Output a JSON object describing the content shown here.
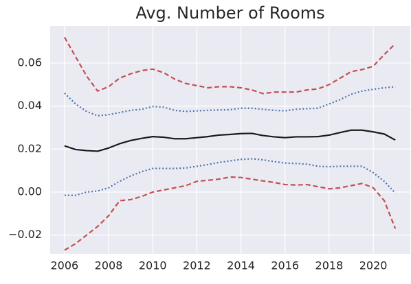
{
  "chart_data": {
    "type": "line",
    "title": "Avg. Number of Rooms",
    "x": [
      2006,
      2006.5,
      2007,
      2007.5,
      2008,
      2008.5,
      2009,
      2009.5,
      2010,
      2010.5,
      2011,
      2011.5,
      2012,
      2012.5,
      2013,
      2013.5,
      2014,
      2014.5,
      2015,
      2015.5,
      2016,
      2016.5,
      2017,
      2017.5,
      2018,
      2018.5,
      2019,
      2019.5,
      2020,
      2020.5,
      2021
    ],
    "series": [
      {
        "color": "#c44e52",
        "dash": "dashed",
        "values": [
          0.072,
          0.063,
          0.054,
          0.047,
          0.049,
          0.053,
          0.055,
          0.0565,
          0.0572,
          0.0555,
          0.0525,
          0.0505,
          0.0495,
          0.0485,
          0.049,
          0.049,
          0.0485,
          0.0475,
          0.0458,
          0.0465,
          0.0465,
          0.0465,
          0.0475,
          0.048,
          0.05,
          0.053,
          0.056,
          0.057,
          0.0585,
          0.064,
          0.069
        ]
      },
      {
        "color": "#4c72b0",
        "dash": "dotted",
        "values": [
          0.046,
          0.041,
          0.0375,
          0.0355,
          0.036,
          0.037,
          0.038,
          0.0385,
          0.0398,
          0.0395,
          0.038,
          0.0375,
          0.0378,
          0.038,
          0.0382,
          0.0383,
          0.039,
          0.039,
          0.0385,
          0.038,
          0.0378,
          0.0385,
          0.0388,
          0.039,
          0.041,
          0.043,
          0.0455,
          0.047,
          0.0478,
          0.0485,
          0.049
        ]
      },
      {
        "color": "#1a1a1a",
        "dash": "solid",
        "values": [
          0.0215,
          0.0198,
          0.0193,
          0.019,
          0.0205,
          0.0225,
          0.024,
          0.025,
          0.0258,
          0.0255,
          0.0248,
          0.0248,
          0.0253,
          0.0258,
          0.0265,
          0.0268,
          0.0272,
          0.0273,
          0.0263,
          0.0257,
          0.0253,
          0.0257,
          0.0257,
          0.0258,
          0.0265,
          0.0277,
          0.0288,
          0.0288,
          0.028,
          0.027,
          0.0242
        ]
      },
      {
        "color": "#4c72b0",
        "dash": "dotted",
        "values": [
          -0.0015,
          -0.0015,
          0.0,
          0.0005,
          0.002,
          0.005,
          0.0075,
          0.0095,
          0.011,
          0.011,
          0.011,
          0.0112,
          0.012,
          0.0128,
          0.0138,
          0.0145,
          0.0152,
          0.0155,
          0.015,
          0.0142,
          0.0135,
          0.0133,
          0.013,
          0.012,
          0.0118,
          0.012,
          0.012,
          0.012,
          0.009,
          0.005,
          -0.0005
        ]
      },
      {
        "color": "#c44e52",
        "dash": "dashed",
        "values": [
          -0.027,
          -0.024,
          -0.02,
          -0.016,
          -0.011,
          -0.004,
          -0.0035,
          -0.002,
          0.0,
          0.001,
          0.002,
          0.003,
          0.005,
          0.0055,
          0.006,
          0.007,
          0.0068,
          0.006,
          0.0052,
          0.0045,
          0.0035,
          0.0033,
          0.0035,
          0.0025,
          0.0015,
          0.002,
          0.003,
          0.004,
          0.002,
          -0.004,
          -0.017
        ]
      }
    ],
    "xlim": [
      2005.35,
      2021.68
    ],
    "ylim": [
      -0.0287,
      0.0772
    ],
    "xticks": [
      2006,
      2008,
      2010,
      2012,
      2014,
      2016,
      2018,
      2020
    ],
    "yticks": [
      {
        "value": -0.02,
        "label": "−0.02"
      },
      {
        "value": 0,
        "label": "0.00"
      },
      0.02,
      0.04,
      0.06
    ],
    "grid": true,
    "background": "#eaeaf2"
  }
}
